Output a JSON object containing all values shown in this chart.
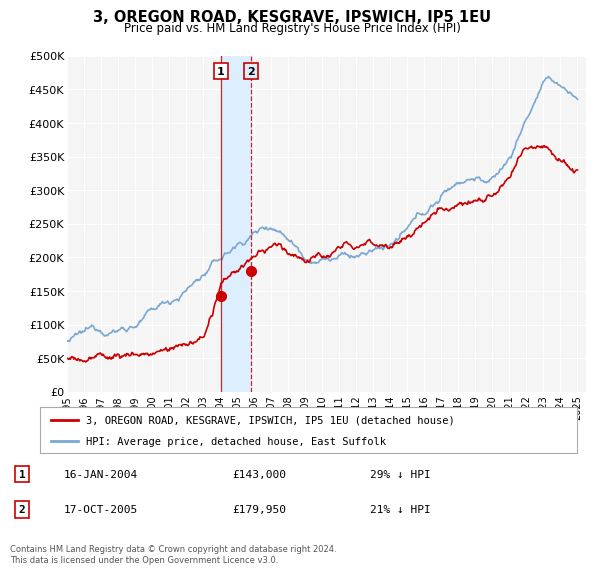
{
  "title": "3, OREGON ROAD, KESGRAVE, IPSWICH, IP5 1EU",
  "subtitle": "Price paid vs. HM Land Registry's House Price Index (HPI)",
  "background_color": "#ffffff",
  "plot_bg_color": "#f5f5f5",
  "grid_color": "#ffffff",
  "hpi_color": "#7aa8d2",
  "price_color": "#cc0000",
  "span_color": "#ddeeff",
  "transaction1_x": 2004.04,
  "transaction1_y": 143000,
  "transaction2_x": 2005.79,
  "transaction2_y": 179950,
  "transaction1_date": "16-JAN-2004",
  "transaction1_price": "£143,000",
  "transaction1_pct": "29% ↓ HPI",
  "transaction2_date": "17-OCT-2005",
  "transaction2_price": "£179,950",
  "transaction2_pct": "21% ↓ HPI",
  "legend_label_price": "3, OREGON ROAD, KESGRAVE, IPSWICH, IP5 1EU (detached house)",
  "legend_label_hpi": "HPI: Average price, detached house, East Suffolk",
  "footer": "Contains HM Land Registry data © Crown copyright and database right 2024.\nThis data is licensed under the Open Government Licence v3.0.",
  "ylim": [
    0,
    500000
  ],
  "xlim": [
    1995.0,
    2025.5
  ],
  "yticks": [
    0,
    50000,
    100000,
    150000,
    200000,
    250000,
    300000,
    350000,
    400000,
    450000,
    500000
  ],
  "ytick_labels": [
    "£0",
    "£50K",
    "£100K",
    "£150K",
    "£200K",
    "£250K",
    "£300K",
    "£350K",
    "£400K",
    "£450K",
    "£500K"
  ],
  "xticks": [
    1995,
    1996,
    1997,
    1998,
    1999,
    2000,
    2001,
    2002,
    2003,
    2004,
    2005,
    2006,
    2007,
    2008,
    2009,
    2010,
    2011,
    2012,
    2013,
    2014,
    2015,
    2016,
    2017,
    2018,
    2019,
    2020,
    2021,
    2022,
    2023,
    2024,
    2025
  ]
}
